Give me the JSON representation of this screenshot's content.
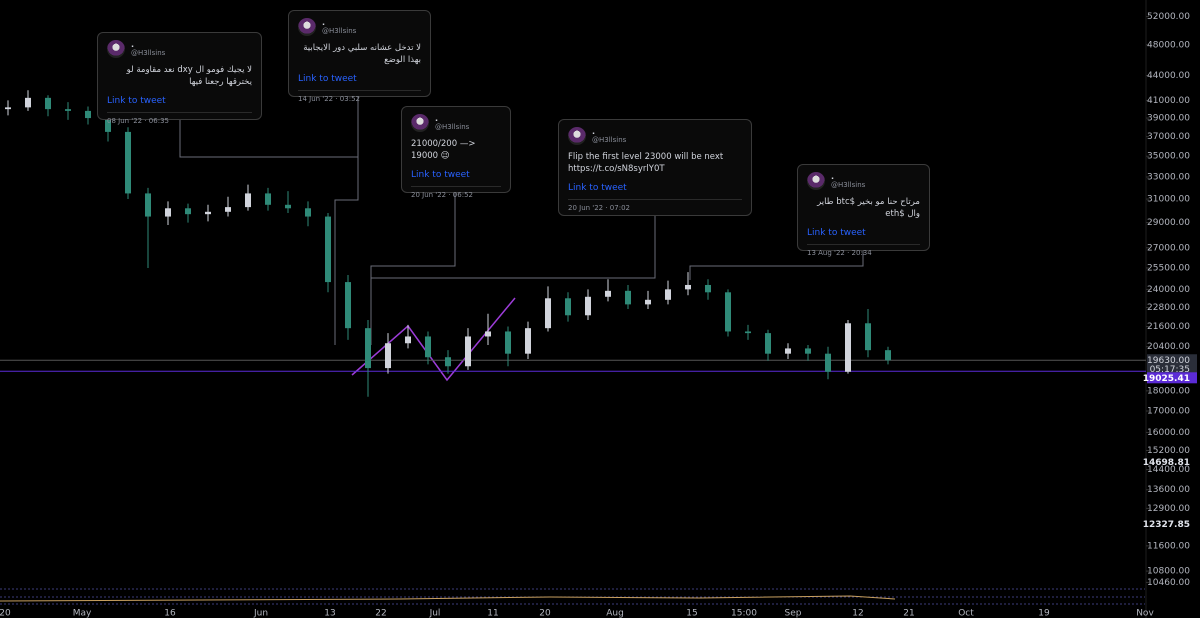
{
  "chart_data": {
    "type": "candlestick",
    "log_scale": true,
    "grid": false,
    "up_color": "#d1d4dc",
    "down_color": "#2f8a78",
    "open": [
      40000,
      40200,
      41300,
      40000,
      39800,
      39000,
      37500,
      31500,
      29500,
      30200,
      29700,
      29900,
      30300,
      31500,
      30500,
      30200,
      29500,
      24500,
      21500,
      19200,
      20600,
      21000,
      19800,
      19300,
      21000,
      21300,
      20000,
      21500,
      23400,
      22300,
      23500,
      23900,
      23000,
      23300,
      24000,
      24300,
      23800,
      21300,
      21200,
      20000,
      20300,
      20000,
      19000,
      21800,
      20200
    ],
    "high": [
      41000,
      42200,
      41600,
      40800,
      40300,
      39500,
      38000,
      32000,
      30800,
      30600,
      30500,
      31200,
      32300,
      32000,
      31700,
      30800,
      29800,
      25000,
      22000,
      21200,
      21700,
      21300,
      20200,
      21500,
      22400,
      21600,
      21900,
      24200,
      23800,
      24000,
      24700,
      24300,
      23900,
      24600,
      25200,
      24700,
      24000,
      21700,
      21400,
      20600,
      20500,
      20400,
      22000,
      22700,
      20400
    ],
    "low": [
      39300,
      39800,
      39200,
      38800,
      38300,
      36500,
      31000,
      25500,
      28800,
      29000,
      29100,
      29500,
      30000,
      30000,
      29800,
      28700,
      23800,
      20800,
      17700,
      18900,
      20300,
      19400,
      18900,
      19100,
      20500,
      19300,
      19700,
      21300,
      21900,
      22000,
      23200,
      22700,
      22700,
      23000,
      23600,
      23300,
      21000,
      20800,
      19600,
      19700,
      19600,
      18600,
      18900,
      19800,
      19400
    ],
    "close": [
      40200,
      41300,
      40000,
      39800,
      39000,
      37500,
      31500,
      29500,
      30200,
      29700,
      29900,
      30300,
      31500,
      30500,
      30200,
      29500,
      24500,
      21500,
      19200,
      20600,
      21000,
      19800,
      19300,
      21000,
      21300,
      20000,
      21500,
      23400,
      22300,
      23500,
      23900,
      23000,
      23300,
      24000,
      24300,
      23800,
      21300,
      21200,
      20000,
      20300,
      20000,
      19000,
      21800,
      20200,
      19630
    ],
    "categories": [
      "20",
      "May",
      "16",
      "Jun",
      "13",
      "22",
      "Jul",
      "11",
      "20",
      "Aug",
      "15",
      "15:00",
      "Sep",
      "12",
      "21",
      "Oct",
      "19",
      "Nov"
    ],
    "ylim": [
      9950,
      54500
    ],
    "yticks": [
      {
        "value": 52000,
        "label": "52000.00"
      },
      {
        "value": 48000,
        "label": "48000.00"
      },
      {
        "value": 44000,
        "label": "44000.00"
      },
      {
        "value": 41000,
        "label": "41000.00"
      },
      {
        "value": 39000,
        "label": "39000.00"
      },
      {
        "value": 37000,
        "label": "37000.00"
      },
      {
        "value": 35000,
        "label": "35000.00"
      },
      {
        "value": 33000,
        "label": "33000.00"
      },
      {
        "value": 31000,
        "label": "31000.00"
      },
      {
        "value": 29000,
        "label": "29000.00"
      },
      {
        "value": 27000,
        "label": "27000.00"
      },
      {
        "value": 25500,
        "label": "25500.00"
      },
      {
        "value": 24000,
        "label": "24000.00"
      },
      {
        "value": 22800,
        "label": "22800.00"
      },
      {
        "value": 21600,
        "label": "21600.00"
      },
      {
        "value": 20400,
        "label": "20400.00"
      },
      {
        "value": 18000,
        "label": "18000.00"
      },
      {
        "value": 17000,
        "label": "17000.00"
      },
      {
        "value": 16000,
        "label": "16000.00"
      },
      {
        "value": 15200,
        "label": "15200.00"
      },
      {
        "value": 14400,
        "label": "14400.00"
      },
      {
        "value": 13600,
        "label": "13600.00"
      },
      {
        "value": 12900,
        "label": "12900.00"
      },
      {
        "value": 11600,
        "label": "11600.00"
      },
      {
        "value": 10800,
        "label": "10800.00"
      },
      {
        "value": 10460,
        "label": "10460.00"
      }
    ],
    "marked_prices": [
      14698.81,
      12327.85
    ],
    "last_price": {
      "value": 19630,
      "label": "19630.00"
    },
    "countdown": "05:17:35",
    "horizontal_line": {
      "value": 19025.41,
      "color": "#5b2bd6"
    }
  },
  "tweets": [
    {
      "name": ".",
      "handle": "@H3llsins",
      "text": "لا يجيك فومو ال dxy نعد مقاومة لو يخترقها رجعنا فيها",
      "link": "Link to tweet",
      "date": "08 Jun '22 · 06:35"
    },
    {
      "name": ".",
      "handle": "@H3llsins",
      "text": "لا تدخل عشانه سلبي دور الايجابية بهذا الوضع",
      "link": "Link to tweet",
      "date": "14 Jun '22 · 03:52"
    },
    {
      "name": ".",
      "handle": "@H3llsins",
      "text": "21000/200 —> 19000 😉",
      "link": "Link to tweet",
      "date": "20 Jun '22 · 06:52"
    },
    {
      "name": ".",
      "handle": "@H3llsins",
      "text": "Flip the first level 23000 will be next https://t.co/sN8syrlY0T",
      "link": "Link to tweet",
      "date": "20 Jun '22 · 07:02"
    },
    {
      "name": ".",
      "handle": "@H3llsins",
      "text": "مرتاح حنا مو بخير $btc طاير وال $eth",
      "link": "Link to tweet",
      "date": "13 Aug '22 · 20:34"
    }
  ]
}
